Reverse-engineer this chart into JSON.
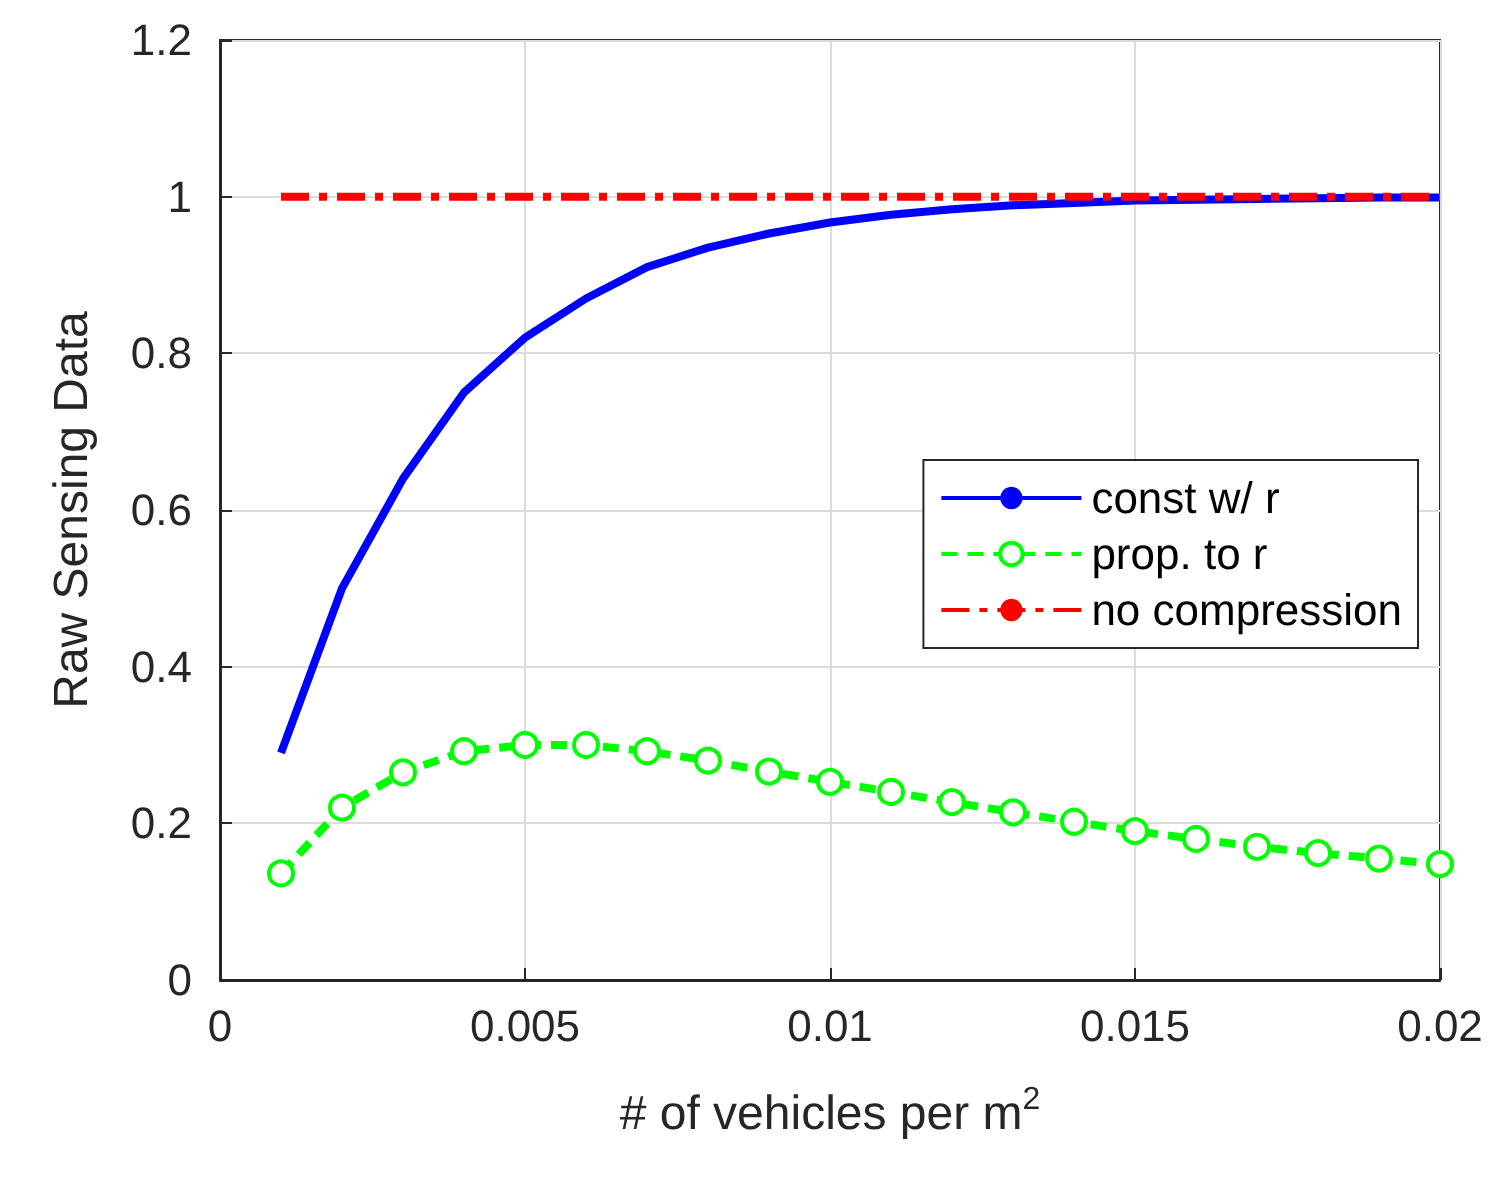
{
  "chart_data": {
    "type": "line",
    "xlabel": "# of vehicles per m$^{2}$",
    "ylabel": "Raw Sensing Data",
    "x": [
      0.001,
      0.002,
      0.003,
      0.004,
      0.005,
      0.006,
      0.007,
      0.008,
      0.009,
      0.01,
      0.011,
      0.012,
      0.013,
      0.014,
      0.015,
      0.016,
      0.017,
      0.018,
      0.019,
      0.02
    ],
    "series": [
      {
        "name": "const w/ r",
        "color": "#0000ff",
        "line_style": "solid",
        "marker": "none",
        "values": [
          0.29,
          0.5,
          0.64,
          0.75,
          0.82,
          0.87,
          0.91,
          0.935,
          0.953,
          0.967,
          0.977,
          0.984,
          0.989,
          0.992,
          0.995,
          0.996,
          0.997,
          0.998,
          0.999,
          0.999
        ]
      },
      {
        "name": "prop. to r",
        "color": "#00ff00",
        "line_style": "dashed",
        "marker": "circle",
        "values": [
          0.136,
          0.22,
          0.265,
          0.292,
          0.3,
          0.3,
          0.292,
          0.28,
          0.266,
          0.253,
          0.24,
          0.227,
          0.214,
          0.202,
          0.19,
          0.18,
          0.17,
          0.162,
          0.155,
          0.148
        ]
      },
      {
        "name": "no compression",
        "color": "#ff0000",
        "line_style": "dashed",
        "marker": "none",
        "values": [
          1,
          1,
          1,
          1,
          1,
          1,
          1,
          1,
          1,
          1,
          1,
          1,
          1,
          1,
          1,
          1,
          1,
          1,
          1,
          1
        ]
      }
    ],
    "xlim": [
      0,
      0.02
    ],
    "xticks": [
      0,
      0.005,
      0.01,
      0.015,
      0.02
    ],
    "ylim": [
      0,
      1.2
    ],
    "yticks": [
      0,
      0.2,
      0.4,
      0.6,
      0.8,
      1,
      1.2
    ],
    "grid": true,
    "legend": "right"
  }
}
